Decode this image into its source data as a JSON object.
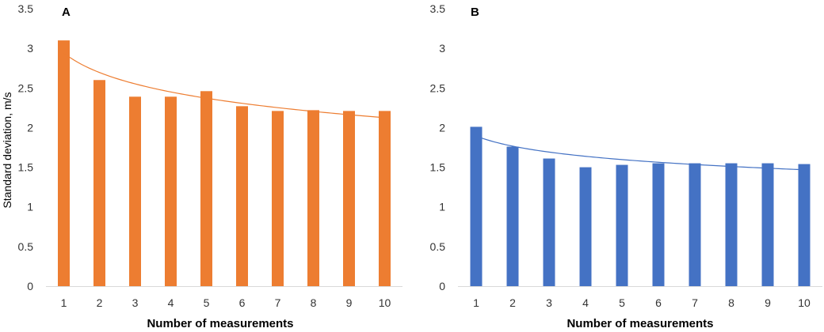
{
  "chart_data": [
    {
      "type": "bar",
      "panel_label": "A",
      "categories": [
        "1",
        "2",
        "3",
        "4",
        "5",
        "6",
        "7",
        "8",
        "9",
        "10"
      ],
      "values": [
        3.1,
        2.6,
        2.39,
        2.39,
        2.46,
        2.27,
        2.21,
        2.22,
        2.21,
        2.21
      ],
      "trendline": "logarithmic",
      "color": "#ED7D31",
      "xlabel": "Number of measurements",
      "ylabel": "Standard deviation, m/s",
      "ylim": [
        0,
        3.5
      ],
      "yticks": [
        "0",
        "0.5",
        "1",
        "1.5",
        "2",
        "2.5",
        "3",
        "3.5"
      ],
      "grid": false
    },
    {
      "type": "bar",
      "panel_label": "B",
      "categories": [
        "1",
        "2",
        "3",
        "4",
        "5",
        "6",
        "7",
        "8",
        "9",
        "10"
      ],
      "values": [
        2.01,
        1.76,
        1.61,
        1.5,
        1.53,
        1.55,
        1.55,
        1.55,
        1.55,
        1.54
      ],
      "trendline": "logarithmic",
      "color": "#4472C4",
      "xlabel": "Number of measurements",
      "ylabel": "",
      "ylim": [
        0,
        3.5
      ],
      "yticks": [
        "0",
        "0.5",
        "1",
        "1.5",
        "2",
        "2.5",
        "3",
        "3.5"
      ],
      "grid": false
    }
  ]
}
